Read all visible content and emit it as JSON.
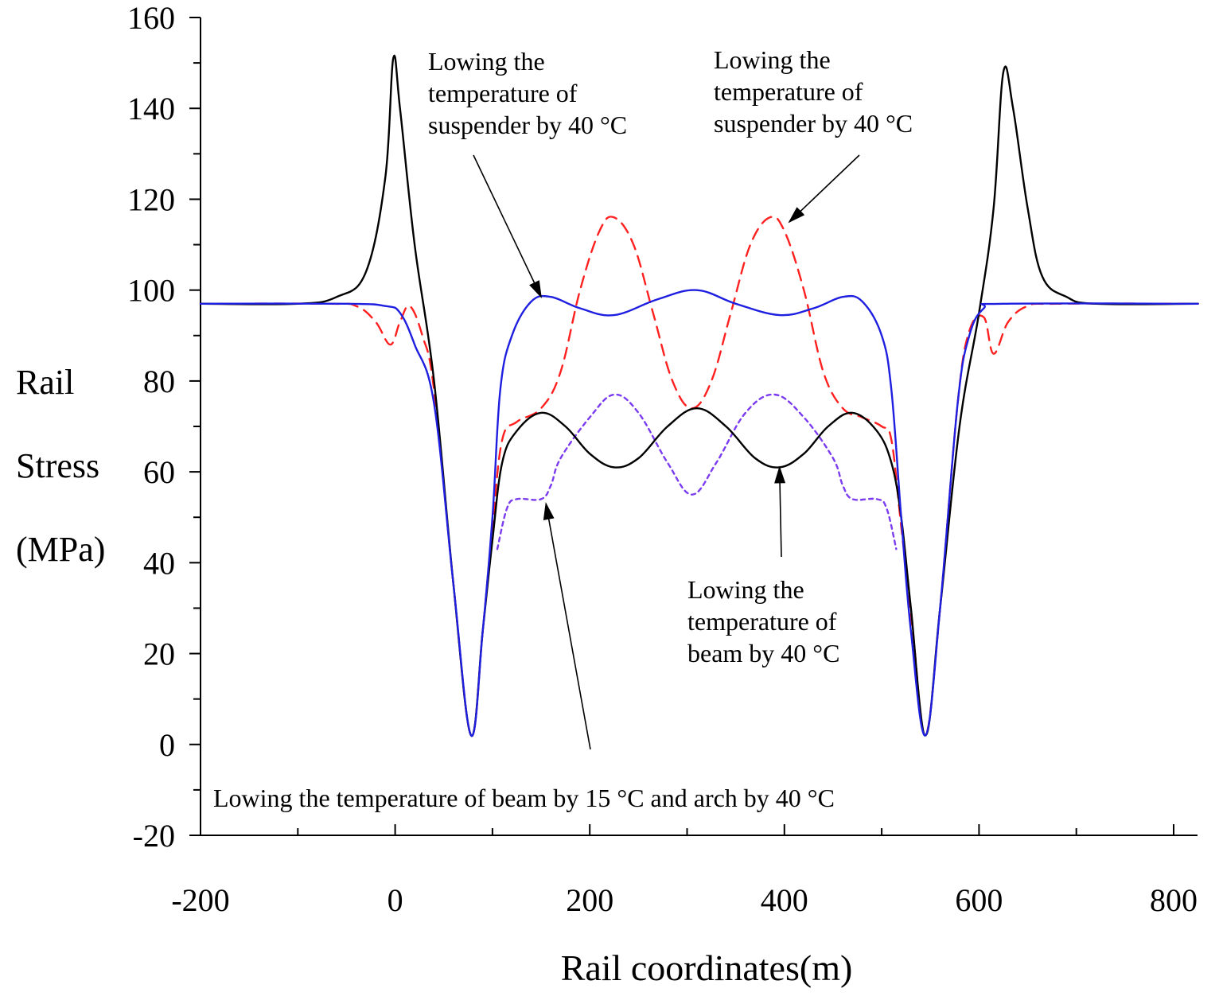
{
  "chart_data": {
    "type": "line",
    "title": "",
    "xlabel": "Rail coordinates(m)",
    "ylabel_lines": [
      "Rail",
      "Stress",
      "(MPa)"
    ],
    "xlim": [
      -200,
      825
    ],
    "ylim": [
      -20,
      160
    ],
    "x_ticks": [
      -200,
      0,
      200,
      400,
      600,
      800
    ],
    "y_ticks": [
      -20,
      0,
      20,
      40,
      60,
      80,
      100,
      120,
      140,
      160
    ],
    "grid": false,
    "series": [
      {
        "name": "Lowing the temperature of beam by 40 °C",
        "color": "#000000",
        "style": "solid",
        "points": [
          [
            -200,
            97
          ],
          [
            -100,
            97
          ],
          [
            -60,
            98.5
          ],
          [
            -30,
            104
          ],
          [
            -10,
            125
          ],
          [
            -2,
            151
          ],
          [
            5,
            140
          ],
          [
            20,
            110
          ],
          [
            40,
            80
          ],
          [
            60,
            35
          ],
          [
            78,
            2
          ],
          [
            90,
            25
          ],
          [
            100,
            45
          ],
          [
            110,
            62
          ],
          [
            125,
            69
          ],
          [
            150,
            73
          ],
          [
            175,
            70
          ],
          [
            200,
            64
          ],
          [
            225,
            61
          ],
          [
            250,
            63
          ],
          [
            280,
            70
          ],
          [
            310,
            74
          ],
          [
            340,
            70
          ],
          [
            370,
            63
          ],
          [
            395,
            61
          ],
          [
            420,
            64
          ],
          [
            445,
            70
          ],
          [
            470,
            73
          ],
          [
            495,
            69
          ],
          [
            510,
            62
          ],
          [
            520,
            50
          ],
          [
            530,
            30
          ],
          [
            545,
            2
          ],
          [
            560,
            30
          ],
          [
            580,
            70
          ],
          [
            600,
            95
          ],
          [
            615,
            118
          ],
          [
            625,
            148
          ],
          [
            635,
            140
          ],
          [
            650,
            118
          ],
          [
            665,
            103
          ],
          [
            690,
            98.5
          ],
          [
            720,
            97
          ],
          [
            825,
            97
          ]
        ]
      },
      {
        "name": "Lowing the temperature of suspender by 40 °C",
        "color": "#1f1fe0",
        "style": "solid",
        "points": [
          [
            -200,
            97
          ],
          [
            -50,
            97
          ],
          [
            -10,
            96.5
          ],
          [
            5,
            95
          ],
          [
            20,
            88
          ],
          [
            40,
            75
          ],
          [
            60,
            35
          ],
          [
            78,
            2
          ],
          [
            90,
            25
          ],
          [
            100,
            50
          ],
          [
            108,
            78
          ],
          [
            120,
            90
          ],
          [
            140,
            97.5
          ],
          [
            160,
            98.5
          ],
          [
            190,
            96
          ],
          [
            225,
            94.5
          ],
          [
            270,
            98
          ],
          [
            310,
            100
          ],
          [
            350,
            97
          ],
          [
            395,
            94.5
          ],
          [
            430,
            96
          ],
          [
            460,
            98.5
          ],
          [
            480,
            97.5
          ],
          [
            500,
            90
          ],
          [
            510,
            78
          ],
          [
            520,
            50
          ],
          [
            530,
            25
          ],
          [
            545,
            2
          ],
          [
            560,
            30
          ],
          [
            578,
            75
          ],
          [
            590,
            90
          ],
          [
            605,
            96
          ],
          [
            625,
            97
          ],
          [
            825,
            97
          ]
        ]
      },
      {
        "name": "Lowing the temperature of suspender by 40 °C",
        "color": "#ff2020",
        "style": "dashed",
        "points": [
          [
            -200,
            97
          ],
          [
            -70,
            97
          ],
          [
            -40,
            96.5
          ],
          [
            -20,
            93
          ],
          [
            -5,
            88
          ],
          [
            5,
            93
          ],
          [
            15,
            96.5
          ],
          [
            28,
            90
          ],
          [
            40,
            78
          ],
          [
            60,
            35
          ],
          [
            78,
            2
          ],
          [
            90,
            25
          ],
          [
            100,
            48
          ],
          [
            110,
            67
          ],
          [
            125,
            71
          ],
          [
            150,
            74
          ],
          [
            170,
            82
          ],
          [
            190,
            100
          ],
          [
            210,
            113
          ],
          [
            225,
            116
          ],
          [
            245,
            110
          ],
          [
            265,
            95
          ],
          [
            285,
            80
          ],
          [
            305,
            74
          ],
          [
            325,
            80
          ],
          [
            345,
            95
          ],
          [
            365,
            110
          ],
          [
            385,
            116
          ],
          [
            400,
            113
          ],
          [
            420,
            100
          ],
          [
            440,
            82
          ],
          [
            460,
            74
          ],
          [
            480,
            72
          ],
          [
            500,
            70
          ],
          [
            510,
            67
          ],
          [
            520,
            48
          ],
          [
            532,
            25
          ],
          [
            545,
            2
          ],
          [
            560,
            30
          ],
          [
            578,
            75
          ],
          [
            590,
            91
          ],
          [
            605,
            94
          ],
          [
            615,
            86
          ],
          [
            630,
            93
          ],
          [
            650,
            96.5
          ],
          [
            680,
            97
          ],
          [
            825,
            97
          ]
        ]
      },
      {
        "name": "Lowing the temperature of beam by 15 °C and arch by 40 °C",
        "color": "#7b3cf0",
        "style": "dotted",
        "points": [
          [
            105,
            43
          ],
          [
            115,
            52
          ],
          [
            125,
            54
          ],
          [
            150,
            54
          ],
          [
            160,
            57
          ],
          [
            170,
            63
          ],
          [
            200,
            72
          ],
          [
            225,
            77
          ],
          [
            250,
            73
          ],
          [
            280,
            62
          ],
          [
            305,
            55
          ],
          [
            330,
            62
          ],
          [
            360,
            73
          ],
          [
            390,
            77
          ],
          [
            420,
            72
          ],
          [
            450,
            63
          ],
          [
            460,
            57
          ],
          [
            470,
            54
          ],
          [
            495,
            54
          ],
          [
            505,
            52
          ],
          [
            515,
            43
          ]
        ]
      }
    ],
    "annotations": [
      {
        "lines": [
          "Lowing the",
          "temperature of",
          "suspender by 40 °C"
        ],
        "target": [
          150,
          98.5
        ]
      },
      {
        "lines": [
          "Lowing the",
          "temperature of",
          "suspender by 40 °C"
        ],
        "target": [
          405,
          115
        ]
      },
      {
        "lines": [
          "Lowing the",
          "temperature of",
          "beam by 40 °C"
        ],
        "target": [
          395,
          61
        ]
      },
      {
        "lines": [
          "Lowing the temperature of beam by 15 °C and arch by 40 °C"
        ],
        "target": [
          155,
          53
        ]
      }
    ]
  }
}
